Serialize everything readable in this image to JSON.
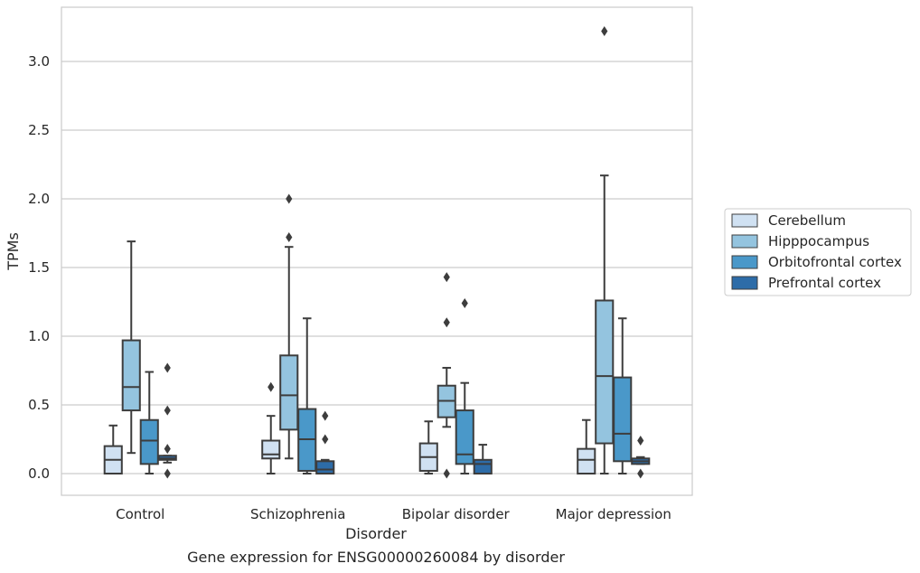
{
  "chart_data": {
    "type": "box",
    "title": "Gene expression for ENSG00000260084 by disorder",
    "xlabel": "Disorder",
    "ylabel": "TPMs",
    "ylim": [
      -0.16,
      3.4
    ],
    "yticks": [
      0.0,
      0.5,
      1.0,
      1.5,
      2.0,
      2.5,
      3.0
    ],
    "ytick_labels": [
      "0.0",
      "0.5",
      "1.0",
      "1.5",
      "2.0",
      "2.5",
      "3.0"
    ],
    "grid": true,
    "legend_position": "right",
    "categories": [
      "Control",
      "Schizophrenia",
      "Bipolar disorder",
      "Major depression"
    ],
    "series": [
      {
        "name": "Cerebellum",
        "color": "#d0e1f2",
        "boxes": [
          {
            "whislo": 0.0,
            "q1": 0.0,
            "med": 0.1,
            "q3": 0.2,
            "whishi": 0.35,
            "fliers": []
          },
          {
            "whislo": 0.0,
            "q1": 0.11,
            "med": 0.14,
            "q3": 0.24,
            "whishi": 0.42,
            "fliers": [
              0.63
            ]
          },
          {
            "whislo": 0.0,
            "q1": 0.02,
            "med": 0.12,
            "q3": 0.22,
            "whishi": 0.38,
            "fliers": []
          },
          {
            "whislo": 0.0,
            "q1": 0.0,
            "med": 0.1,
            "q3": 0.18,
            "whishi": 0.39,
            "fliers": []
          }
        ]
      },
      {
        "name": "Hipppocampus",
        "color": "#94c4df",
        "boxes": [
          {
            "whislo": 0.15,
            "q1": 0.46,
            "med": 0.63,
            "q3": 0.97,
            "whishi": 1.69,
            "fliers": []
          },
          {
            "whislo": 0.11,
            "q1": 0.32,
            "med": 0.57,
            "q3": 0.86,
            "whishi": 1.65,
            "fliers": [
              1.72,
              2.0
            ]
          },
          {
            "whislo": 0.34,
            "q1": 0.41,
            "med": 0.53,
            "q3": 0.64,
            "whishi": 0.77,
            "fliers": [
              0.0,
              1.1,
              1.43
            ]
          },
          {
            "whislo": 0.0,
            "q1": 0.22,
            "med": 0.71,
            "q3": 1.26,
            "whishi": 2.17,
            "fliers": [
              3.22
            ]
          }
        ]
      },
      {
        "name": "Orbitofrontal cortex",
        "color": "#4a98c9",
        "boxes": [
          {
            "whislo": 0.0,
            "q1": 0.07,
            "med": 0.24,
            "q3": 0.39,
            "whishi": 0.74,
            "fliers": []
          },
          {
            "whislo": 0.0,
            "q1": 0.02,
            "med": 0.25,
            "q3": 0.47,
            "whishi": 1.13,
            "fliers": []
          },
          {
            "whislo": 0.0,
            "q1": 0.07,
            "med": 0.14,
            "q3": 0.46,
            "whishi": 0.66,
            "fliers": [
              1.24
            ]
          },
          {
            "whislo": 0.0,
            "q1": 0.09,
            "med": 0.29,
            "q3": 0.7,
            "whishi": 1.13,
            "fliers": []
          }
        ]
      },
      {
        "name": "Prefrontal cortex",
        "color": "#2d6ca8",
        "boxes": [
          {
            "whislo": 0.08,
            "q1": 0.1,
            "med": 0.11,
            "q3": 0.13,
            "whishi": 0.13,
            "fliers": [
              0.0,
              0.18,
              0.46,
              0.77
            ]
          },
          {
            "whislo": 0.0,
            "q1": 0.0,
            "med": 0.03,
            "q3": 0.09,
            "whishi": 0.1,
            "fliers": [
              0.25,
              0.42
            ]
          },
          {
            "whislo": 0.0,
            "q1": 0.0,
            "med": 0.07,
            "q3": 0.1,
            "whishi": 0.21,
            "fliers": []
          },
          {
            "whislo": 0.07,
            "q1": 0.07,
            "med": 0.09,
            "q3": 0.11,
            "whishi": 0.12,
            "fliers": [
              0.0,
              0.24
            ]
          }
        ]
      }
    ]
  }
}
